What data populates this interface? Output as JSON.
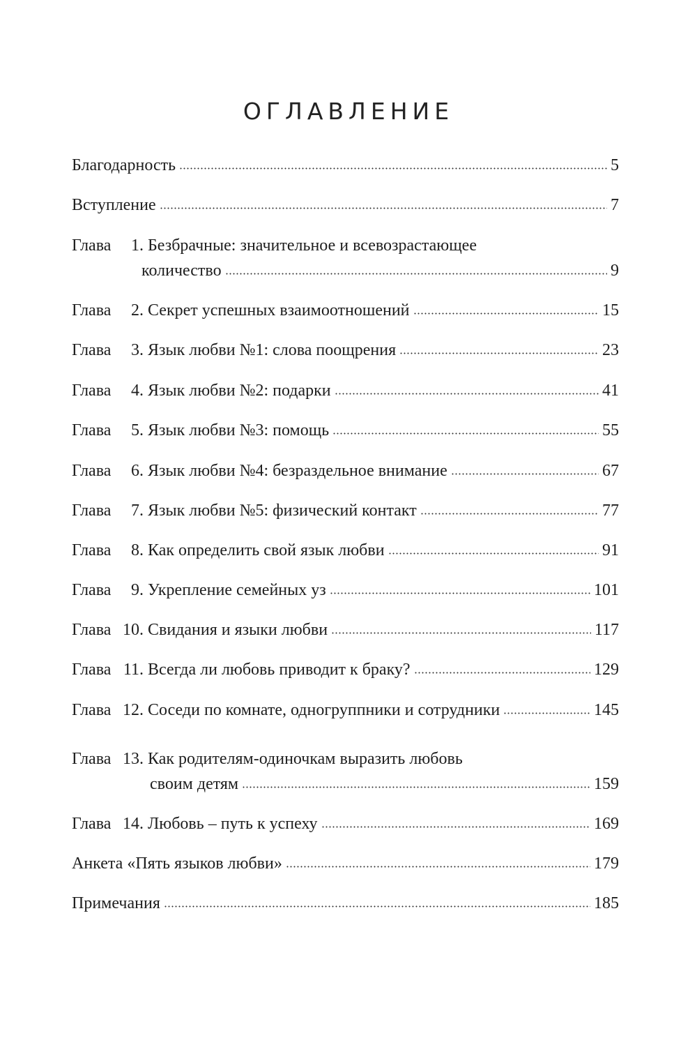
{
  "title": "ОГЛАВЛЕНИЕ",
  "entries": [
    {
      "text": "Благодарность",
      "page": "5"
    },
    {
      "text": "Вступление",
      "page": "7"
    },
    {
      "label": "Глава",
      "number": "1.",
      "text": "Безбрачные: значительное и всевозрастающее",
      "continuation": "количество",
      "page": "9"
    },
    {
      "label": "Глава",
      "number": "2.",
      "text": "Секрет успешных взаимоотношений",
      "page": "15"
    },
    {
      "label": "Глава",
      "number": "3.",
      "text": "Язык любви №1: слова поощрения",
      "page": "23"
    },
    {
      "label": "Глава",
      "number": "4.",
      "text": "Язык любви №2: подарки",
      "page": "41"
    },
    {
      "label": "Глава",
      "number": "5.",
      "text": "Язык любви №3: помощь",
      "page": "55"
    },
    {
      "label": "Глава",
      "number": "6.",
      "text": "Язык любви №4: безраздельное внимание",
      "page": "67"
    },
    {
      "label": "Глава",
      "number": "7.",
      "text": "Язык любви №5: физический контакт",
      "page": "77"
    },
    {
      "label": "Глава",
      "number": "8.",
      "text": "Как определить свой язык любви",
      "page": "91"
    },
    {
      "label": "Глава",
      "number": "9.",
      "text": "Укрепление семейных уз",
      "page": "101"
    },
    {
      "label": "Глава",
      "number": "10.",
      "text": "Свидания и языки любви",
      "page": "117"
    },
    {
      "label": "Глава",
      "number": "11.",
      "text": "Всегда ли любовь приводит к браку?",
      "page": "129"
    },
    {
      "label": "Глава",
      "number": "12.",
      "text": "Соседи по комнате, одногруппники и сотрудники",
      "page": "145"
    },
    {
      "label": "Глава",
      "number": "13.",
      "text": "Как родителям-одиночкам выразить любовь",
      "continuation": "своим детям",
      "page": "159"
    },
    {
      "label": "Глава",
      "number": "14.",
      "text": "Любовь – путь к успеху",
      "page": "169"
    },
    {
      "text": "Анкета «Пять языков любви»",
      "page": "179"
    },
    {
      "text": "Примечания",
      "page": "185"
    }
  ]
}
